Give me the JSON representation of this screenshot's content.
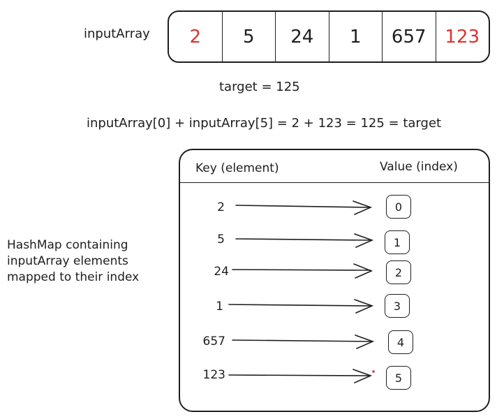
{
  "array": {
    "label": "inputArray",
    "cells": [
      {
        "value": "2",
        "color": "#e03131"
      },
      {
        "value": "5",
        "color": "#1e1e1e"
      },
      {
        "value": "24",
        "color": "#1e1e1e"
      },
      {
        "value": "1",
        "color": "#1e1e1e"
      },
      {
        "value": "657",
        "color": "#1e1e1e"
      },
      {
        "value": "123",
        "color": "#e03131"
      }
    ]
  },
  "target_text": "target = 125",
  "equation_text": "inputArray[0] + inputArray[5] = 2 + 123 = 125 = target",
  "hashmap": {
    "key_header": "Key (element)",
    "value_header": "Value (index)",
    "note_lines": [
      "HashMap containing",
      "inputArray elements",
      "mapped to their index"
    ],
    "rows": [
      {
        "key": "2",
        "value": "0"
      },
      {
        "key": "5",
        "value": "1"
      },
      {
        "key": "24",
        "value": "2"
      },
      {
        "key": "1",
        "value": "3"
      },
      {
        "key": "657",
        "value": "4"
      },
      {
        "key": "123",
        "value": "5"
      }
    ]
  },
  "colors": {
    "stroke": "#1e1e1e",
    "highlight": "#e03131"
  }
}
